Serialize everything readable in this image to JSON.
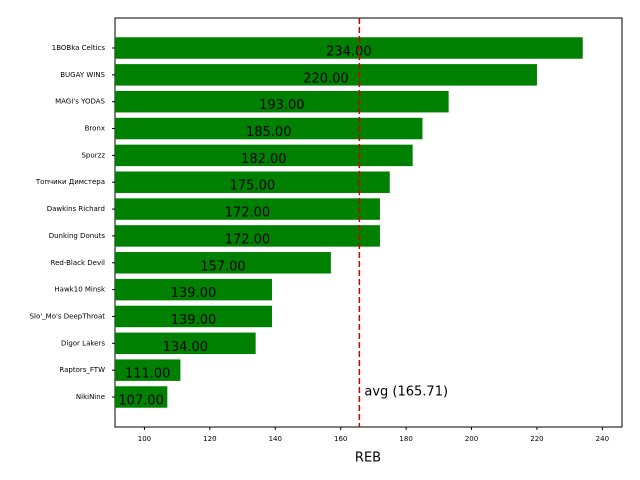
{
  "chart_data": {
    "type": "barh",
    "categories": [
      "1BOBka Celtics",
      "BUGAY WINS",
      "MAGI's YODAS",
      "Bronx",
      "Spurzz",
      "Топчики Димстера",
      "Dawkins Richard",
      "Dunking Donuts",
      "Red-Black Devil",
      "Hawk10 Minsk",
      "Slo'_Mo's DeepThroat",
      "Digor Lakers",
      "Raptors_FTW",
      "NikiNine"
    ],
    "values": [
      234,
      220,
      193,
      185,
      182,
      175,
      172,
      172,
      157,
      139,
      139,
      134,
      111,
      107
    ],
    "value_labels": [
      "234.00",
      "220.00",
      "193.00",
      "185.00",
      "182.00",
      "175.00",
      "172.00",
      "172.00",
      "157.00",
      "139.00",
      "139.00",
      "134.00",
      "111.00",
      "107.00"
    ],
    "color": "#008000",
    "xlabel": "REB",
    "xlim": [
      91,
      246
    ],
    "xticks": [
      100,
      120,
      140,
      160,
      180,
      200,
      220,
      240
    ],
    "avg_line": {
      "value": 165.71,
      "label": "avg (165.71)",
      "color": "#cc0000"
    }
  }
}
